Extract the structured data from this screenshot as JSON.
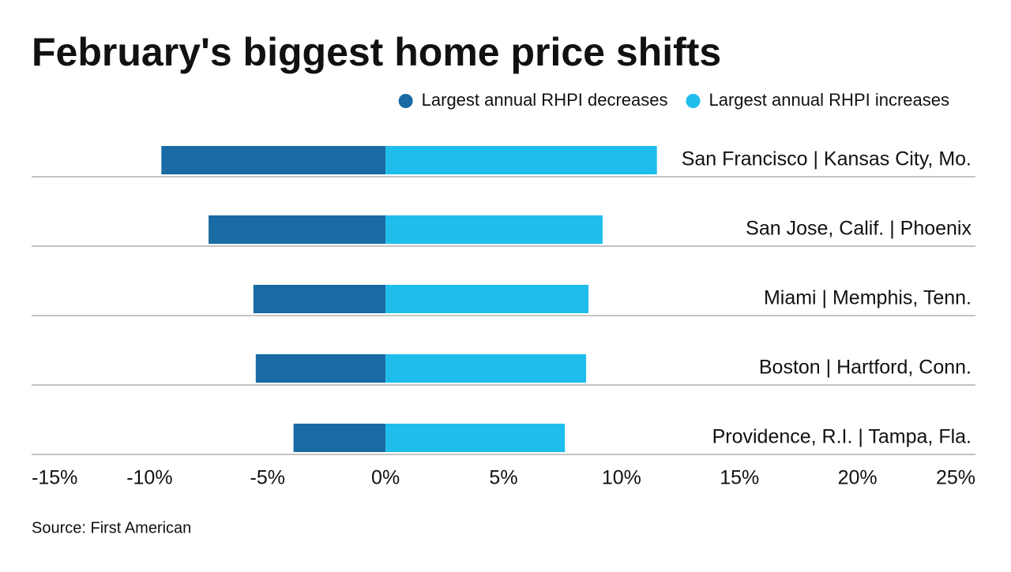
{
  "chart_data": {
    "type": "diverging-bar",
    "title": "February's biggest home price shifts",
    "source": "Source: First American",
    "categories": [
      "San Francisco | Kansas City, Mo.",
      "San Jose, Calif. | Phoenix",
      "Miami | Memphis, Tenn.",
      "Boston | Hartford, Conn.",
      "Providence, R.I. | Tampa, Fla."
    ],
    "series": [
      {
        "name": "Largest annual RHPI decreases",
        "color": "#1a6aa3",
        "values": [
          -9.5,
          -7.5,
          -5.6,
          -5.5,
          -3.9
        ]
      },
      {
        "name": "Largest annual RHPI increases",
        "color": "#1fbdec",
        "values": [
          11.5,
          9.2,
          8.6,
          8.5,
          7.6
        ]
      }
    ],
    "xlim": [
      -15,
      25
    ],
    "xticks": [
      {
        "value": -15,
        "label": "-15%"
      },
      {
        "value": -10,
        "label": "-10%"
      },
      {
        "value": -5,
        "label": "-5%"
      },
      {
        "value": 0,
        "label": "0%"
      },
      {
        "value": 5,
        "label": "5%"
      },
      {
        "value": 10,
        "label": "10%"
      },
      {
        "value": 15,
        "label": "15%"
      },
      {
        "value": 20,
        "label": "20%"
      },
      {
        "value": 25,
        "label": "25%"
      }
    ]
  }
}
